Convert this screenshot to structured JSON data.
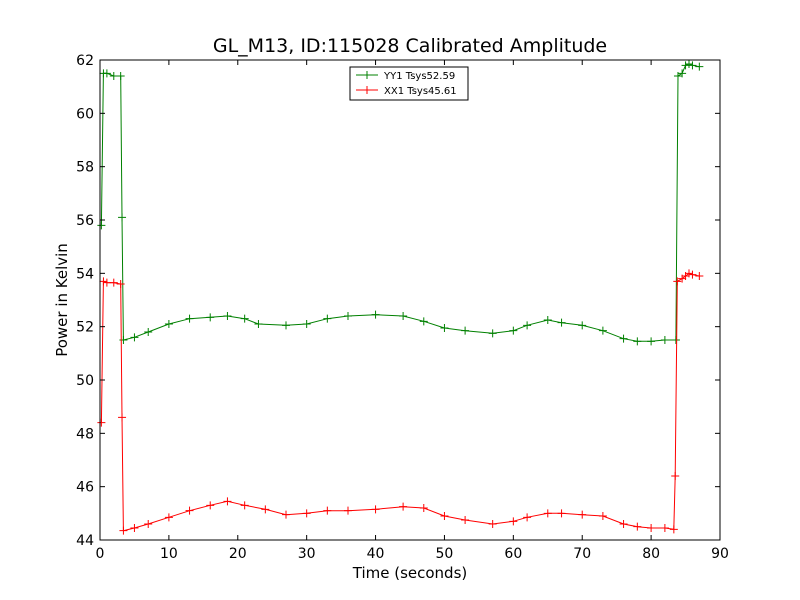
{
  "chart_data": {
    "type": "line",
    "title": "GL_M13, ID:115028 Calibrated Amplitude",
    "xlabel": "Time (seconds)",
    "ylabel": "Power in Kelvin",
    "xlim": [
      0,
      90
    ],
    "ylim": [
      44,
      62
    ],
    "xticks": [
      0,
      10,
      20,
      30,
      40,
      50,
      60,
      70,
      80,
      90
    ],
    "yticks": [
      44,
      46,
      48,
      50,
      52,
      54,
      56,
      58,
      60,
      62
    ],
    "grid": false,
    "legend_position": "top-center",
    "series": [
      {
        "name": "YY1 Tsys52.59",
        "color": "#008000",
        "marker": "+",
        "x": [
          0.2,
          0.5,
          1.0,
          2.0,
          3.0,
          3.2,
          3.4,
          5,
          7,
          10,
          13,
          16,
          18.5,
          21,
          23,
          27,
          30,
          33,
          36,
          40,
          44,
          47,
          50,
          53,
          57,
          60,
          62,
          65,
          67,
          70,
          73,
          76,
          78,
          80,
          82,
          83.6,
          83.9,
          84.5,
          85.0,
          85.5,
          86.0,
          87.0
        ],
        "values": [
          55.8,
          61.5,
          61.5,
          61.4,
          61.4,
          56.1,
          51.5,
          51.6,
          51.8,
          52.1,
          52.3,
          52.35,
          52.4,
          52.3,
          52.1,
          52.05,
          52.1,
          52.3,
          52.4,
          52.45,
          52.4,
          52.2,
          51.95,
          51.85,
          51.75,
          51.85,
          52.05,
          52.25,
          52.15,
          52.05,
          51.85,
          51.55,
          51.45,
          51.45,
          51.5,
          51.5,
          61.4,
          61.5,
          61.8,
          61.85,
          61.8,
          61.75
        ]
      },
      {
        "name": "XX1 Tsys45.61",
        "color": "#ff0000",
        "marker": "+",
        "x": [
          0.2,
          0.5,
          1.0,
          2.0,
          3.0,
          3.2,
          3.4,
          5,
          7,
          10,
          13,
          16,
          18.5,
          21,
          24,
          27,
          30,
          33,
          36,
          40,
          44,
          47,
          50,
          53,
          57,
          60,
          62,
          65,
          67,
          70,
          73,
          76,
          78,
          80,
          82,
          83.3,
          83.5,
          83.8,
          84.5,
          85.0,
          85.5,
          86.0,
          87.0
        ],
        "values": [
          48.4,
          53.7,
          53.65,
          53.65,
          53.6,
          48.6,
          44.35,
          44.45,
          44.6,
          44.85,
          45.1,
          45.3,
          45.45,
          45.3,
          45.15,
          44.95,
          45.0,
          45.1,
          45.1,
          45.15,
          45.25,
          45.2,
          44.9,
          44.75,
          44.6,
          44.7,
          44.85,
          45.0,
          45.0,
          44.95,
          44.9,
          44.6,
          44.5,
          44.45,
          44.45,
          44.4,
          46.4,
          53.7,
          53.8,
          53.9,
          54.0,
          53.95,
          53.9
        ]
      }
    ]
  }
}
